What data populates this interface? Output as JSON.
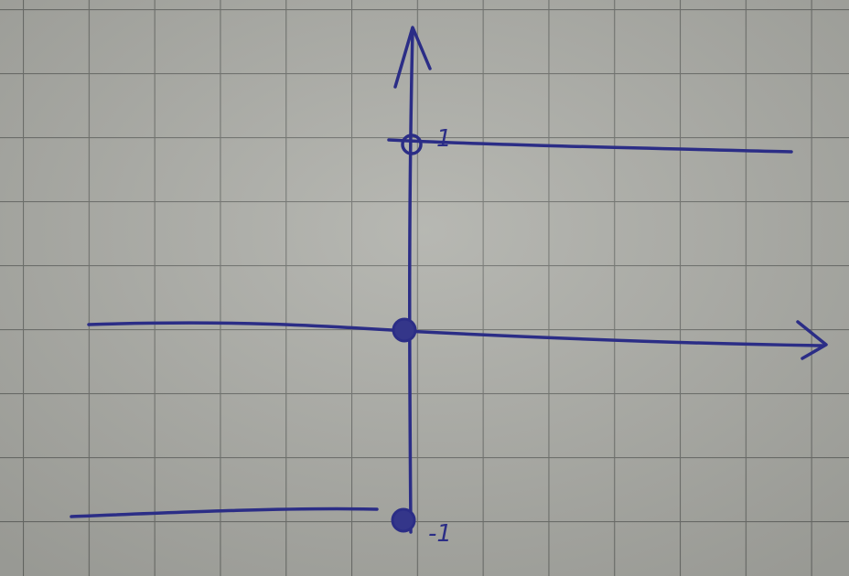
{
  "drawing": {
    "labels": [
      "1",
      "-1"
    ]
  }
}
